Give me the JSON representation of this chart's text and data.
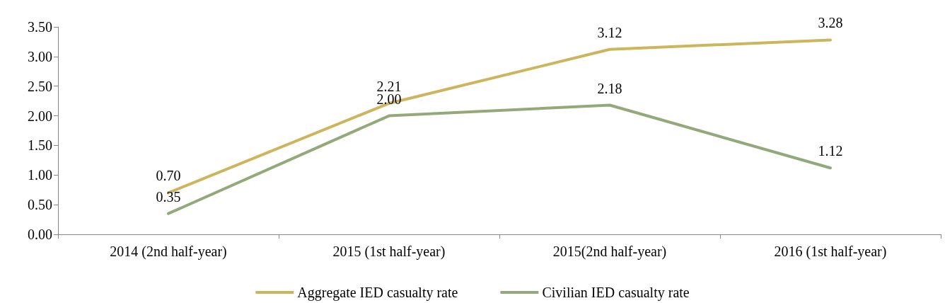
{
  "chart_data": {
    "type": "line",
    "categories": [
      "2014 (2nd half-year)",
      "2015 (1st half-year)",
      "2015(2nd half-year)",
      "2016 (1st half-year)"
    ],
    "series": [
      {
        "name": "Aggregate IED casualty rate",
        "color": "#cdb55e",
        "values": [
          0.7,
          2.21,
          3.12,
          3.28
        ],
        "value_labels": [
          "0.70",
          "2.21",
          "3.12",
          "3.28"
        ]
      },
      {
        "name": "Civilian IED casualty rate",
        "color": "#94a97a",
        "values": [
          0.35,
          2.0,
          2.18,
          1.12
        ],
        "value_labels": [
          "0.35",
          "2.00",
          "2.18",
          "1.12"
        ]
      }
    ],
    "ylim": [
      0,
      3.5
    ],
    "yticks": [
      {
        "value": 0,
        "label": "0.00"
      },
      {
        "value": 0.5,
        "label": "0.50"
      },
      {
        "value": 1,
        "label": "1.00"
      },
      {
        "value": 1.5,
        "label": "1.50"
      },
      {
        "value": 2,
        "label": "2.00"
      },
      {
        "value": 2.5,
        "label": "2.50"
      },
      {
        "value": 3,
        "label": "3.00"
      },
      {
        "value": 3.5,
        "label": "3.50"
      }
    ],
    "grid": false,
    "legend": "bottom",
    "marker": "none",
    "line_style": "solid"
  }
}
